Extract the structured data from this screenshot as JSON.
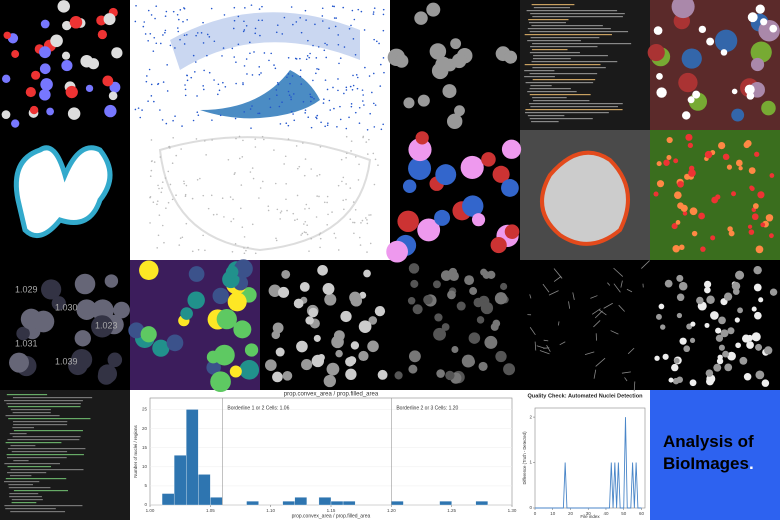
{
  "tile_labels": [
    "1.029",
    "1.030",
    "1.023",
    "1.031",
    "1.039"
  ],
  "histogram": {
    "type": "bar",
    "title": "prop.convex_area / prop.filled_area",
    "xlabel": "prop.convex_area / prop.filled_area",
    "ylabel": "Number of nuclei / regions",
    "annotations": [
      "Borderline 1 or 2 Cells: 1.06",
      "Borderline 2 or 3 Cells: 1.20"
    ],
    "thresholds": [
      1.06,
      1.2
    ],
    "bins": [
      1.0,
      1.01,
      1.02,
      1.03,
      1.04,
      1.05,
      1.06,
      1.07,
      1.08,
      1.09,
      1.1,
      1.11,
      1.12,
      1.13,
      1.14,
      1.15,
      1.16,
      1.17,
      1.18,
      1.19,
      1.2,
      1.21,
      1.22,
      1.23,
      1.24,
      1.25,
      1.26,
      1.27,
      1.28,
      1.29,
      1.3
    ],
    "counts": [
      0,
      3,
      13,
      25,
      8,
      2,
      0,
      0,
      1,
      0,
      0,
      1,
      2,
      0,
      2,
      1,
      1,
      0,
      0,
      0,
      1,
      0,
      0,
      0,
      1,
      0,
      0,
      1,
      0,
      0
    ],
    "color": "#2e75b0",
    "xlim": [
      1.0,
      1.3
    ],
    "ylim": [
      0,
      28
    ],
    "xticks": [
      {
        "value": 1.0,
        "label": "1.00"
      },
      {
        "value": 1.05,
        "label": "1.05"
      },
      {
        "value": 1.1,
        "label": "1.10"
      },
      {
        "value": 1.15,
        "label": "1.15"
      },
      {
        "value": 1.2,
        "label": "1.20"
      },
      {
        "value": 1.25,
        "label": "1.25"
      },
      {
        "value": 1.3,
        "label": "1.30"
      }
    ],
    "yticks": [
      0,
      5,
      10,
      15,
      20,
      25
    ]
  },
  "quality": {
    "type": "line",
    "title": "Quality Check: Automated Nuclei Detection",
    "xlabel": "File index",
    "ylabel": "Difference (Truth - Detected)",
    "x": [
      0,
      16,
      17,
      18,
      42,
      43,
      44,
      45,
      46,
      47,
      48,
      50,
      51,
      52,
      54,
      55,
      56,
      57,
      58,
      60
    ],
    "values": [
      0,
      0,
      1,
      0,
      0,
      1,
      0,
      1,
      0,
      1,
      0,
      0,
      2,
      0,
      0,
      1,
      0,
      1,
      0,
      0
    ],
    "color": "#4a86c8",
    "xlim": [
      0,
      62
    ],
    "ylim": [
      0,
      2.2
    ],
    "xticks": [
      0,
      10,
      20,
      30,
      40,
      50,
      60
    ],
    "yticks": [
      0,
      1,
      2
    ]
  },
  "tagline": {
    "text": "Analysis of BioImages",
    "dot": "."
  }
}
